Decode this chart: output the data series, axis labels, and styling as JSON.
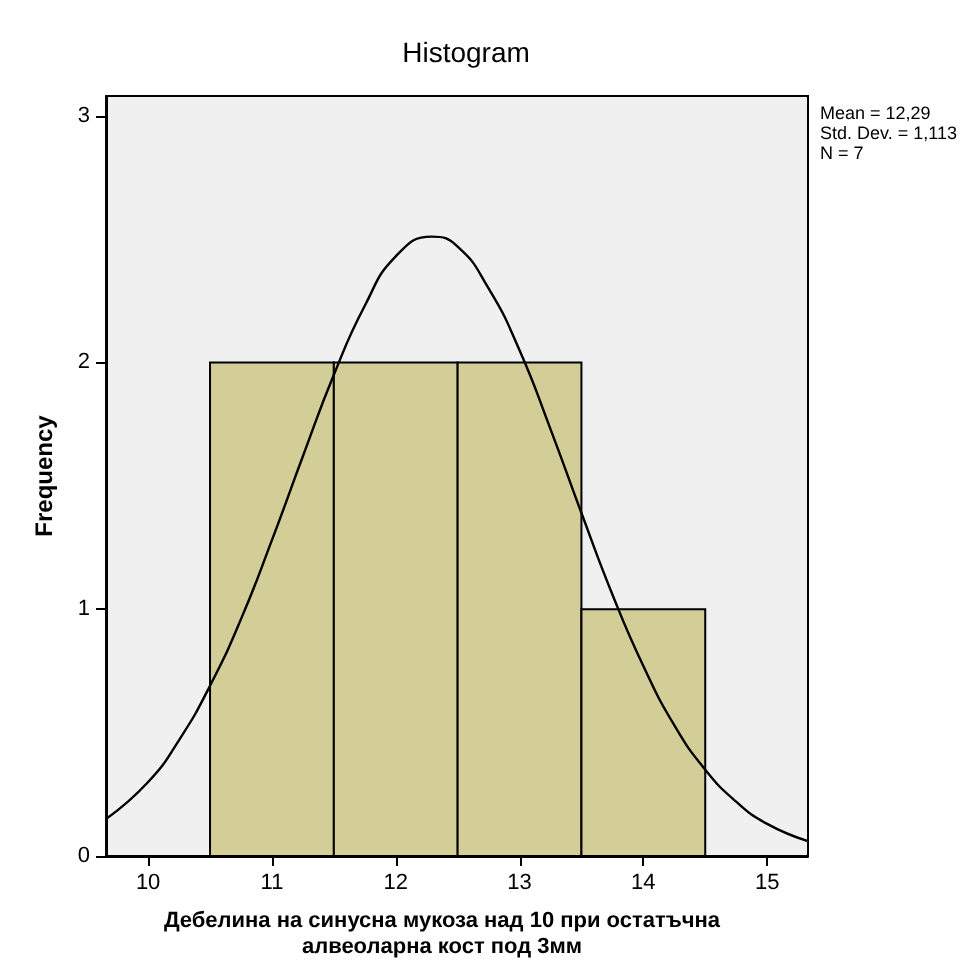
{
  "chart_data": {
    "type": "histogram",
    "title": "Histogram",
    "xlabel": "Дебелина на синусна мукоза над 10 при остатъчна\nалвеоларна кост под 3мм",
    "ylabel": "Frequency",
    "bins": [
      10.5,
      11.5,
      12.5,
      13.5,
      14.5
    ],
    "values": [
      2,
      2,
      2,
      1
    ],
    "color": "#d3ce97",
    "series": [
      {
        "type": "line",
        "color": "#000000",
        "x": [
          9.66,
          10,
          10.25,
          10.5,
          10.75,
          11,
          11.25,
          11.5,
          11.75,
          12,
          12.29,
          12.5,
          12.75,
          13,
          13.25,
          13.5,
          13.75,
          14,
          14.25,
          14.5,
          14.75,
          15,
          15.33
        ],
        "values": [
          0.15,
          0.3,
          0.47,
          0.69,
          0.96,
          1.28,
          1.62,
          1.95,
          2.23,
          2.43,
          2.51,
          2.47,
          2.3,
          2.05,
          1.73,
          1.39,
          1.06,
          0.77,
          0.53,
          0.35,
          0.22,
          0.13,
          0.06
        ]
      }
    ],
    "xlim": [
      9.66,
      15.33
    ],
    "xticks": [
      10,
      11,
      12,
      13,
      14,
      15
    ],
    "ylim": [
      0,
      3.08
    ],
    "yticks": [
      0,
      1,
      2,
      3
    ],
    "grid": false,
    "marker": "none",
    "annotations": [
      "Mean = 12,29",
      "Std. Dev. = 1,113",
      "N = 7"
    ]
  }
}
